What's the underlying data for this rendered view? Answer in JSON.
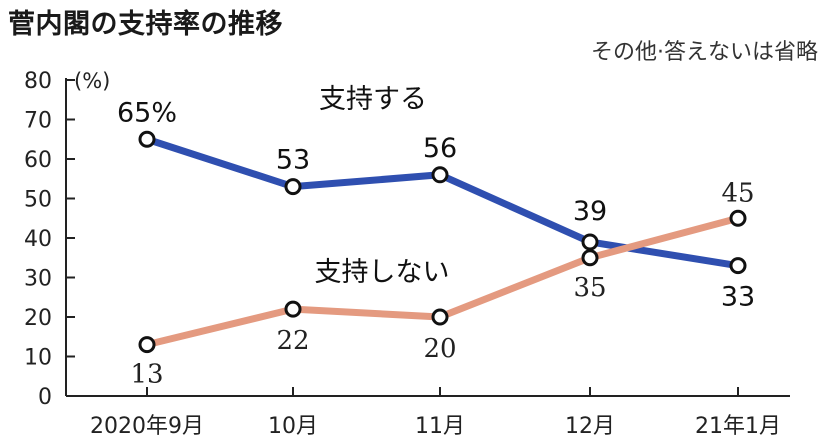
{
  "title": "菅内閣の支持率の推移",
  "note": "その他·答えないは省略",
  "colors": {
    "support": "#2f4fb0",
    "not_support": "#e49a80",
    "axis": "#222222"
  },
  "chart_data": {
    "type": "line",
    "title": "菅内閣の支持率の推移",
    "ylabel": "(%)",
    "ylim": [
      0,
      80
    ],
    "yticks": [
      0,
      10,
      20,
      30,
      40,
      50,
      60,
      70,
      80
    ],
    "categories": [
      "2020年9月",
      "10月",
      "11月",
      "12月",
      "21年1月"
    ],
    "grid": false,
    "series": [
      {
        "name": "支持する",
        "values": [
          65,
          53,
          56,
          39,
          33
        ],
        "data_labels": [
          "65%",
          "53",
          "56",
          "39",
          "33"
        ]
      },
      {
        "name": "支持しない",
        "values": [
          13,
          22,
          20,
          35,
          45
        ],
        "data_labels": [
          "13",
          "22",
          "20",
          "35",
          "45"
        ]
      }
    ]
  }
}
